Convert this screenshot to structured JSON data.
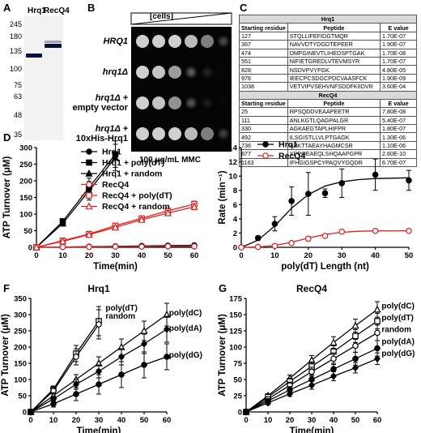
{
  "panel_labels": {
    "a": "A",
    "b": "B",
    "c": "C",
    "d": "D",
    "e": "E",
    "f": "F",
    "g": "G"
  },
  "panel_a": {
    "lanes": [
      "Hrq1",
      "RecQ4"
    ],
    "markers": [
      "245",
      "180",
      "135",
      "100",
      "75",
      "63",
      "48",
      "35"
    ],
    "marker_values": [
      245,
      180,
      135,
      100,
      75,
      63,
      48,
      35
    ],
    "band_colors": "#0a0f3a"
  },
  "panel_b": {
    "cells_label": "[cells]",
    "rows": [
      "HRQ1",
      "hrq1Δ",
      "hrq1Δ +\nempty vector",
      "hrq1Δ +\n10xHis-Hrq1"
    ],
    "row_lines": [
      [
        "HRQ1"
      ],
      [
        "hrq1Δ"
      ],
      [
        "hrq1Δ +",
        "empty vector"
      ],
      [
        "hrq1Δ +",
        "10xHis-Hrq1"
      ]
    ],
    "growth": [
      [
        1,
        1,
        1,
        0.9,
        0.6,
        0.35
      ],
      [
        1,
        0.95,
        0.75,
        0.45,
        0.15,
        0.0
      ],
      [
        1,
        0.95,
        0.7,
        0.4,
        0.12,
        0.0
      ],
      [
        1,
        1,
        1,
        0.9,
        0.6,
        0.3
      ]
    ],
    "caption": "100 μg/mL MMC"
  },
  "panel_c": {
    "sections": [
      {
        "title": "Hrq1",
        "headers": [
          "Starting residue",
          "Peptide",
          "E value"
        ],
        "rows": [
          [
            "127",
            "STQLLIFEFIDGTMQR",
            "1.70E-07"
          ],
          [
            "367",
            "NAVVDTYDGDTEPEER",
            "1.90E-07"
          ],
          [
            "474",
            "DMFGINEVTLIHEDSPTGAK",
            "1.70E-08"
          ],
          [
            "551",
            "NIFIETGREDLVTEVMSYR",
            "1.70E-07"
          ],
          [
            "828",
            "NSDVPVYFGK",
            "4.80E-05"
          ],
          [
            "976",
            "IEECPCSDGCPDCVAASFCK",
            "1.90E-09"
          ],
          [
            "1038",
            "VETVIPVSEHVNFSDDFKIIDVR",
            "3.60E-04"
          ]
        ]
      },
      {
        "title": "RecQ4",
        "headers": [
          "Starting residue",
          "Peptide",
          "E value"
        ],
        "rows": [
          [
            "25",
            "RPSQDDVEAAPEETR",
            "7.80E-08"
          ],
          [
            "111",
            "ANLKGTLQAGPALGR",
            "5.40E-07"
          ],
          [
            "330",
            "AGKAEGTAPLHIFPR",
            "1.80E-07"
          ],
          [
            "492",
            "ILSGISTLLVLPTGAGK",
            "1.30E-06"
          ],
          [
            "736",
            "APKTTAEAYHAGMCSR",
            "1.10E-06"
          ],
          [
            "877",
            "YPPQEAEQLSHQAAPGPR",
            "2.60E-10"
          ],
          [
            "1163",
            "IFHGIGSPCYPAQVYGQDR",
            "6.70E-07"
          ]
        ]
      }
    ]
  },
  "chart_data": [
    {
      "id": "D",
      "type": "line",
      "ylabel": "ATP Turnover (μM)",
      "xlabel": "Time(min)",
      "xlim": [
        0,
        60
      ],
      "ylim": [
        0,
        300
      ],
      "xticks": [
        0,
        10,
        20,
        30,
        40,
        50,
        60
      ],
      "yticks": [
        0,
        50,
        100,
        150,
        200,
        250,
        300
      ],
      "series": [
        {
          "name": "Hrq1",
          "color": "#000000",
          "marker": "circle",
          "filled": true,
          "x": [
            0,
            10,
            20,
            30,
            40,
            50,
            60
          ],
          "y": [
            0,
            1,
            2,
            3,
            4,
            5,
            6
          ],
          "err": [
            0,
            1,
            1,
            1,
            1,
            1,
            1
          ]
        },
        {
          "name": "Hrq1 + poly(dT)",
          "color": "#000000",
          "marker": "square",
          "filled": true,
          "x": [
            0,
            10,
            20,
            30
          ],
          "y": [
            0,
            78,
            180,
            280
          ],
          "err": [
            0,
            8,
            28,
            40
          ]
        },
        {
          "name": "Hrq1 + random",
          "color": "#000000",
          "marker": "triangle",
          "filled": true,
          "x": [
            0,
            10,
            20,
            30
          ],
          "y": [
            0,
            72,
            170,
            270
          ],
          "err": [
            0,
            8,
            28,
            40
          ]
        },
        {
          "name": "RecQ4",
          "color": "#e02020",
          "marker": "circle",
          "filled": false,
          "x": [
            0,
            10,
            20,
            30,
            40,
            50,
            60
          ],
          "y": [
            0,
            1,
            1,
            2,
            2,
            3,
            3
          ],
          "err": [
            0,
            1,
            1,
            1,
            1,
            1,
            1
          ]
        },
        {
          "name": "RecQ4 + poly(dT)",
          "color": "#e02020",
          "marker": "square",
          "filled": false,
          "x": [
            0,
            10,
            20,
            30,
            40,
            50,
            60
          ],
          "y": [
            0,
            20,
            40,
            65,
            87,
            110,
            130
          ],
          "err": [
            0,
            3,
            4,
            5,
            6,
            8,
            9
          ]
        },
        {
          "name": "RecQ4 + random",
          "color": "#e02020",
          "marker": "triangle",
          "filled": false,
          "x": [
            0,
            10,
            20,
            30,
            40,
            50,
            60
          ],
          "y": [
            0,
            18,
            38,
            60,
            83,
            103,
            122
          ],
          "err": [
            0,
            3,
            4,
            5,
            6,
            8,
            9
          ]
        }
      ]
    },
    {
      "id": "E",
      "type": "scatter",
      "ylabel": "Rate (min⁻¹)",
      "xlabel": "poly(dT) Length (nt)",
      "xlim": [
        0,
        50
      ],
      "ylim": [
        0,
        14
      ],
      "xticks": [
        0,
        10,
        20,
        30,
        40,
        50
      ],
      "yticks": [
        0,
        2,
        4,
        6,
        8,
        10,
        12,
        14
      ],
      "series": [
        {
          "name": "Hrq1",
          "color": "#000000",
          "marker": "circle",
          "filled": true,
          "x": [
            0,
            5,
            10,
            15,
            20,
            25,
            30,
            40,
            50
          ],
          "y": [
            0,
            1.3,
            3.3,
            6.5,
            7.5,
            7.6,
            9.0,
            10.2,
            9.4
          ],
          "err": [
            0,
            0.3,
            1.0,
            2.0,
            3.0,
            0.6,
            2.0,
            2.2,
            1.4
          ],
          "fit": [
            [
              0,
              0
            ],
            [
              5,
              1.0
            ],
            [
              10,
              3.0
            ],
            [
              15,
              5.5
            ],
            [
              20,
              7.4
            ],
            [
              25,
              8.6
            ],
            [
              30,
              9.2
            ],
            [
              35,
              9.5
            ],
            [
              40,
              9.65
            ],
            [
              50,
              9.75
            ]
          ]
        },
        {
          "name": "RecQ4",
          "color": "#e02020",
          "marker": "circle",
          "filled": false,
          "x": [
            0,
            5,
            10,
            15,
            20,
            25,
            30,
            40,
            50
          ],
          "y": [
            0,
            0.05,
            0.2,
            0.6,
            1.2,
            1.6,
            2.2,
            2.3,
            2.3
          ],
          "err": [
            0,
            0.05,
            0.1,
            0.2,
            0.3,
            0.2,
            0.2,
            0.2,
            0.2
          ],
          "fit": [
            [
              0,
              0
            ],
            [
              5,
              0.05
            ],
            [
              10,
              0.25
            ],
            [
              15,
              0.7
            ],
            [
              20,
              1.3
            ],
            [
              25,
              1.8
            ],
            [
              30,
              2.1
            ],
            [
              35,
              2.25
            ],
            [
              40,
              2.3
            ],
            [
              50,
              2.32
            ]
          ]
        }
      ]
    },
    {
      "id": "F",
      "type": "line",
      "title": "Hrq1",
      "ylabel": "ATP Turnover (μM)",
      "xlabel": "Time(min)",
      "xlim": [
        0,
        60
      ],
      "ylim": [
        0,
        350
      ],
      "xticks": [
        0,
        10,
        20,
        30,
        40,
        50,
        60
      ],
      "yticks": [
        0,
        50,
        100,
        150,
        200,
        250,
        300,
        350
      ],
      "series": [
        {
          "name": "poly(dT)",
          "color": "#000000",
          "marker": "square",
          "filled": false,
          "x": [
            0,
            10,
            20,
            30
          ],
          "y": [
            0,
            70,
            180,
            280
          ],
          "err": [
            0,
            10,
            25,
            45
          ]
        },
        {
          "name": "random",
          "color": "#000000",
          "marker": "circle",
          "filled": false,
          "x": [
            0,
            10,
            20,
            30
          ],
          "y": [
            0,
            65,
            170,
            270
          ],
          "err": [
            0,
            10,
            25,
            45
          ]
        },
        {
          "name": "poly(dC)",
          "color": "#000000",
          "marker": "triangle",
          "filled": false,
          "x": [
            0,
            10,
            20,
            30,
            40,
            50,
            60
          ],
          "y": [
            0,
            50,
            100,
            150,
            200,
            250,
            300
          ],
          "err": [
            0,
            8,
            15,
            20,
            25,
            30,
            35
          ]
        },
        {
          "name": "poly(dA)",
          "color": "#000000",
          "marker": "diamond",
          "filled": true,
          "x": [
            0,
            10,
            20,
            30,
            40,
            50,
            60
          ],
          "y": [
            0,
            40,
            85,
            125,
            170,
            210,
            255
          ],
          "err": [
            0,
            8,
            15,
            20,
            25,
            30,
            40
          ]
        },
        {
          "name": "poly(dG)",
          "color": "#000000",
          "marker": "circle",
          "filled": true,
          "x": [
            0,
            10,
            20,
            30,
            40,
            50,
            60
          ],
          "y": [
            0,
            25,
            55,
            85,
            115,
            145,
            170
          ],
          "err": [
            0,
            10,
            20,
            30,
            40,
            40,
            40
          ]
        }
      ],
      "labels": [
        {
          "text": "poly(dT)",
          "x": 33,
          "y": 320
        },
        {
          "text": "random",
          "x": 33,
          "y": 295
        },
        {
          "text": "poly(dC)",
          "x": 61,
          "y": 305
        },
        {
          "text": "poly(dA)",
          "x": 61,
          "y": 258
        },
        {
          "text": "poly(dG)",
          "x": 61,
          "y": 175
        }
      ]
    },
    {
      "id": "G",
      "type": "line",
      "title": "RecQ4",
      "ylabel": "ATP Turnover (μM)",
      "xlabel": "Time(min)",
      "xlim": [
        0,
        60
      ],
      "ylim": [
        0,
        175
      ],
      "xticks": [
        0,
        10,
        20,
        30,
        40,
        50,
        60
      ],
      "yticks": [
        0,
        25,
        50,
        75,
        100,
        125,
        150,
        175
      ],
      "series": [
        {
          "name": "poly(dC)",
          "color": "#000000",
          "marker": "triangle",
          "filled": false,
          "x": [
            0,
            10,
            20,
            30,
            40,
            50,
            60
          ],
          "y": [
            0,
            25,
            52,
            80,
            107,
            133,
            158
          ],
          "err": [
            0,
            3,
            5,
            7,
            9,
            10,
            12
          ]
        },
        {
          "name": "poly(dT)",
          "color": "#000000",
          "marker": "square",
          "filled": false,
          "x": [
            0,
            10,
            20,
            30,
            40,
            50,
            60
          ],
          "y": [
            0,
            23,
            47,
            70,
            93,
            117,
            140
          ],
          "err": [
            0,
            3,
            5,
            7,
            9,
            10,
            12
          ]
        },
        {
          "name": "random",
          "color": "#000000",
          "marker": "circle",
          "filled": false,
          "x": [
            0,
            10,
            20,
            30,
            40,
            50,
            60
          ],
          "y": [
            0,
            20,
            41,
            62,
            82,
            102,
            122
          ],
          "err": [
            0,
            3,
            5,
            7,
            9,
            10,
            12
          ]
        },
        {
          "name": "poly(dA)",
          "color": "#000000",
          "marker": "circle",
          "filled": true,
          "x": [
            0,
            10,
            20,
            30,
            40,
            50,
            60
          ],
          "y": [
            0,
            17,
            34,
            50,
            66,
            82,
            98
          ],
          "err": [
            0,
            3,
            5,
            7,
            9,
            10,
            12
          ]
        },
        {
          "name": "poly(dG)",
          "color": "#000000",
          "marker": "diamond",
          "filled": true,
          "x": [
            0,
            10,
            20,
            30,
            40,
            50,
            60
          ],
          "y": [
            0,
            14,
            28,
            41,
            55,
            68,
            82
          ],
          "err": [
            0,
            3,
            4,
            6,
            7,
            8,
            9
          ]
        }
      ],
      "labels": [
        {
          "text": "poly(dC)",
          "x": 62,
          "y": 163
        },
        {
          "text": "poly(dT)",
          "x": 62,
          "y": 145
        },
        {
          "text": "random",
          "x": 62,
          "y": 127
        },
        {
          "text": "poly(dA)",
          "x": 62,
          "y": 108
        },
        {
          "text": "poly(dG)",
          "x": 62,
          "y": 90
        }
      ]
    }
  ]
}
